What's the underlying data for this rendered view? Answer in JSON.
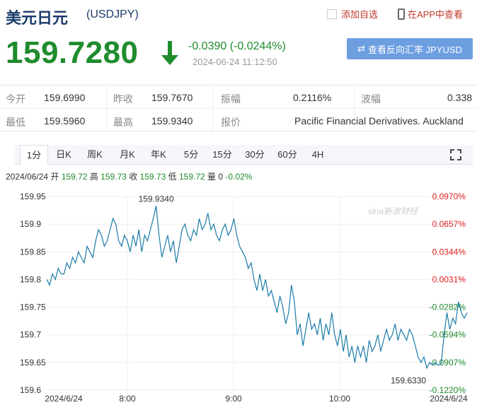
{
  "header": {
    "title": "美元日元",
    "code": "(USDJPY)",
    "favorite_label": "添加自选",
    "app_label": "在APP中查看",
    "price": "159.7280",
    "change": "-0.0390 (-0.0244%)",
    "time": "2024-06-24 11:12:50",
    "reverse_label": "查看反向汇率 JPYUSD"
  },
  "stats": {
    "open_label": "今开",
    "open": "159.6990",
    "prev_label": "昨收",
    "prev": "159.7670",
    "amp_label": "振幅",
    "amp": "0.2116%",
    "wave_label": "波幅",
    "wave": "0.338",
    "low_label": "最低",
    "low": "159.5960",
    "high_label": "最高",
    "high": "159.9340",
    "quote_label": "报价",
    "quote": "Pacific Financial Derivatives. Auckland"
  },
  "tabs": [
    "1分",
    "日K",
    "周K",
    "月K",
    "年K",
    "5分",
    "15分",
    "30分",
    "60分",
    "4H"
  ],
  "ohlc": {
    "date": "2024/06/24",
    "open_label": "开",
    "open": "159.72",
    "high_label": "高",
    "high": "159.73",
    "close_label": "收",
    "close": "159.73",
    "low_label": "低",
    "low": "159.72",
    "vol_label": "量",
    "vol": "0",
    "pct": "-0.02%"
  },
  "watermark": "sina新浪财经",
  "colors": {
    "up": "#e02020",
    "down": "#1f8c2d",
    "line": "#1b7ba8",
    "header": "#1a3a6b"
  },
  "chart_data": {
    "type": "line",
    "ylim": [
      159.6,
      159.95
    ],
    "y_ticks": [
      "159.95",
      "159.9",
      "159.85",
      "159.8",
      "159.75",
      "159.7",
      "159.65",
      "159.6"
    ],
    "pct_ticks": [
      "0.0970%",
      "0.0657%",
      "0.0344%",
      "0.0031%",
      "-0.0282%",
      "-0.0594%",
      "-0.0907%",
      "-0.1220%"
    ],
    "x_ticks": [
      "2024/6/24",
      "8:00",
      "9:00",
      "10:00",
      "2024/6/24"
    ],
    "max_label": "159.9340",
    "min_label": "159.6330",
    "values": [
      159.8,
      159.79,
      159.81,
      159.8,
      159.82,
      159.81,
      159.81,
      159.83,
      159.82,
      159.84,
      159.83,
      159.85,
      159.84,
      159.83,
      159.86,
      159.85,
      159.84,
      159.87,
      159.89,
      159.88,
      159.86,
      159.87,
      159.89,
      159.91,
      159.9,
      159.87,
      159.86,
      159.88,
      159.87,
      159.85,
      159.88,
      159.86,
      159.89,
      159.85,
      159.88,
      159.87,
      159.89,
      159.91,
      159.933,
      159.88,
      159.84,
      159.86,
      159.88,
      159.85,
      159.87,
      159.83,
      159.86,
      159.89,
      159.9,
      159.88,
      159.87,
      159.89,
      159.88,
      159.91,
      159.89,
      159.9,
      159.92,
      159.89,
      159.9,
      159.88,
      159.87,
      159.89,
      159.9,
      159.88,
      159.89,
      159.91,
      159.88,
      159.86,
      159.85,
      159.84,
      159.82,
      159.83,
      159.8,
      159.78,
      159.81,
      159.78,
      159.8,
      159.77,
      159.78,
      159.76,
      159.74,
      159.77,
      159.75,
      159.72,
      159.74,
      159.79,
      159.76,
      159.7,
      159.72,
      159.68,
      159.71,
      159.74,
      159.71,
      159.72,
      159.7,
      159.73,
      159.69,
      159.72,
      159.7,
      159.74,
      159.7,
      159.68,
      159.71,
      159.67,
      159.7,
      159.66,
      159.68,
      159.65,
      159.68,
      159.66,
      159.68,
      159.65,
      159.69,
      159.67,
      159.68,
      159.7,
      159.67,
      159.69,
      159.71,
      159.69,
      159.7,
      159.72,
      159.69,
      159.71,
      159.7,
      159.69,
      159.71,
      159.7,
      159.68,
      159.66,
      159.65,
      159.66,
      159.64,
      159.65,
      159.645,
      159.65,
      159.645,
      159.648,
      159.7,
      159.74,
      159.71,
      159.73,
      159.72,
      159.76,
      159.74,
      159.73,
      159.74
    ]
  }
}
